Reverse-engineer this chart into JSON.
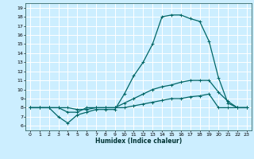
{
  "title": "",
  "xlabel": "Humidex (Indice chaleur)",
  "bg_color": "#cceeff",
  "grid_color": "#ffffff",
  "line_color": "#006666",
  "xlim": [
    -0.5,
    23.5
  ],
  "ylim": [
    5.5,
    19.5
  ],
  "xticks": [
    0,
    1,
    2,
    3,
    4,
    5,
    6,
    7,
    8,
    9,
    10,
    11,
    12,
    13,
    14,
    15,
    16,
    17,
    18,
    19,
    20,
    21,
    22,
    23
  ],
  "yticks": [
    6,
    7,
    8,
    9,
    10,
    11,
    12,
    13,
    14,
    15,
    16,
    17,
    18,
    19
  ],
  "line1_y": [
    8.0,
    8.0,
    8.0,
    7.0,
    6.3,
    7.2,
    7.5,
    7.8,
    7.8,
    7.8,
    9.5,
    11.5,
    13.0,
    15.0,
    18.0,
    18.2,
    18.2,
    17.8,
    17.5,
    15.3,
    11.3,
    8.5,
    8.0,
    8.0
  ],
  "line2_y": [
    8.0,
    8.0,
    8.0,
    8.0,
    7.5,
    7.5,
    8.0,
    8.0,
    8.0,
    8.0,
    8.5,
    9.0,
    9.5,
    10.0,
    10.3,
    10.5,
    10.8,
    11.0,
    11.0,
    11.0,
    9.7,
    8.7,
    8.0,
    8.0
  ],
  "line3_y": [
    8.0,
    8.0,
    8.0,
    8.0,
    8.0,
    7.8,
    7.8,
    8.0,
    8.0,
    8.0,
    8.0,
    8.2,
    8.4,
    8.6,
    8.8,
    9.0,
    9.0,
    9.2,
    9.3,
    9.5,
    8.0,
    8.0,
    8.0,
    8.0
  ],
  "marker_size": 2.5,
  "linewidth": 0.9,
  "tick_fontsize": 4.5,
  "xlabel_fontsize": 5.5
}
